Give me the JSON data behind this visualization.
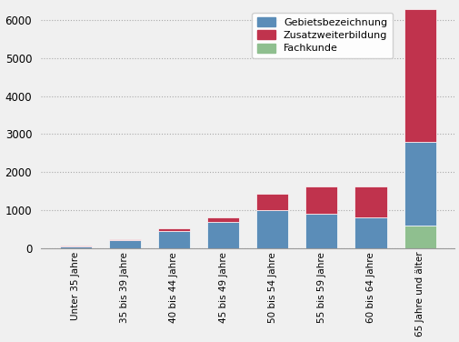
{
  "categories": [
    "Unter 35 Jahre",
    "35 bis 39 Jahre",
    "40 bis 44 Jahre",
    "45 bis 49 Jahre",
    "50 bis 54 Jahre",
    "55 bis 59 Jahre",
    "60 bis 64 Jahre",
    "65 Jahre und älter"
  ],
  "gebietsbezeichnung": [
    50,
    200,
    450,
    680,
    1000,
    900,
    800,
    2200
  ],
  "zusatzweiterbildung": [
    10,
    20,
    60,
    130,
    430,
    730,
    820,
    3500
  ],
  "fachkunde": [
    0,
    0,
    0,
    0,
    0,
    0,
    0,
    600
  ],
  "color_gebiets": "#5b8db8",
  "color_zusatz": "#c0334d",
  "color_fachkunde": "#8fbf8f",
  "legend_labels": [
    "Gebietsbezeichnung",
    "Zusatzweiterbildung",
    "Fachkunde"
  ],
  "ylim": [
    0,
    6400
  ],
  "yticks": [
    0,
    1000,
    2000,
    3000,
    4000,
    5000,
    6000
  ],
  "background_color": "#f0f0f0",
  "grid_color": "#aaaaaa",
  "bar_edge_color": "#ffffff",
  "figsize": [
    5.06,
    3.76
  ],
  "dpi": 100
}
